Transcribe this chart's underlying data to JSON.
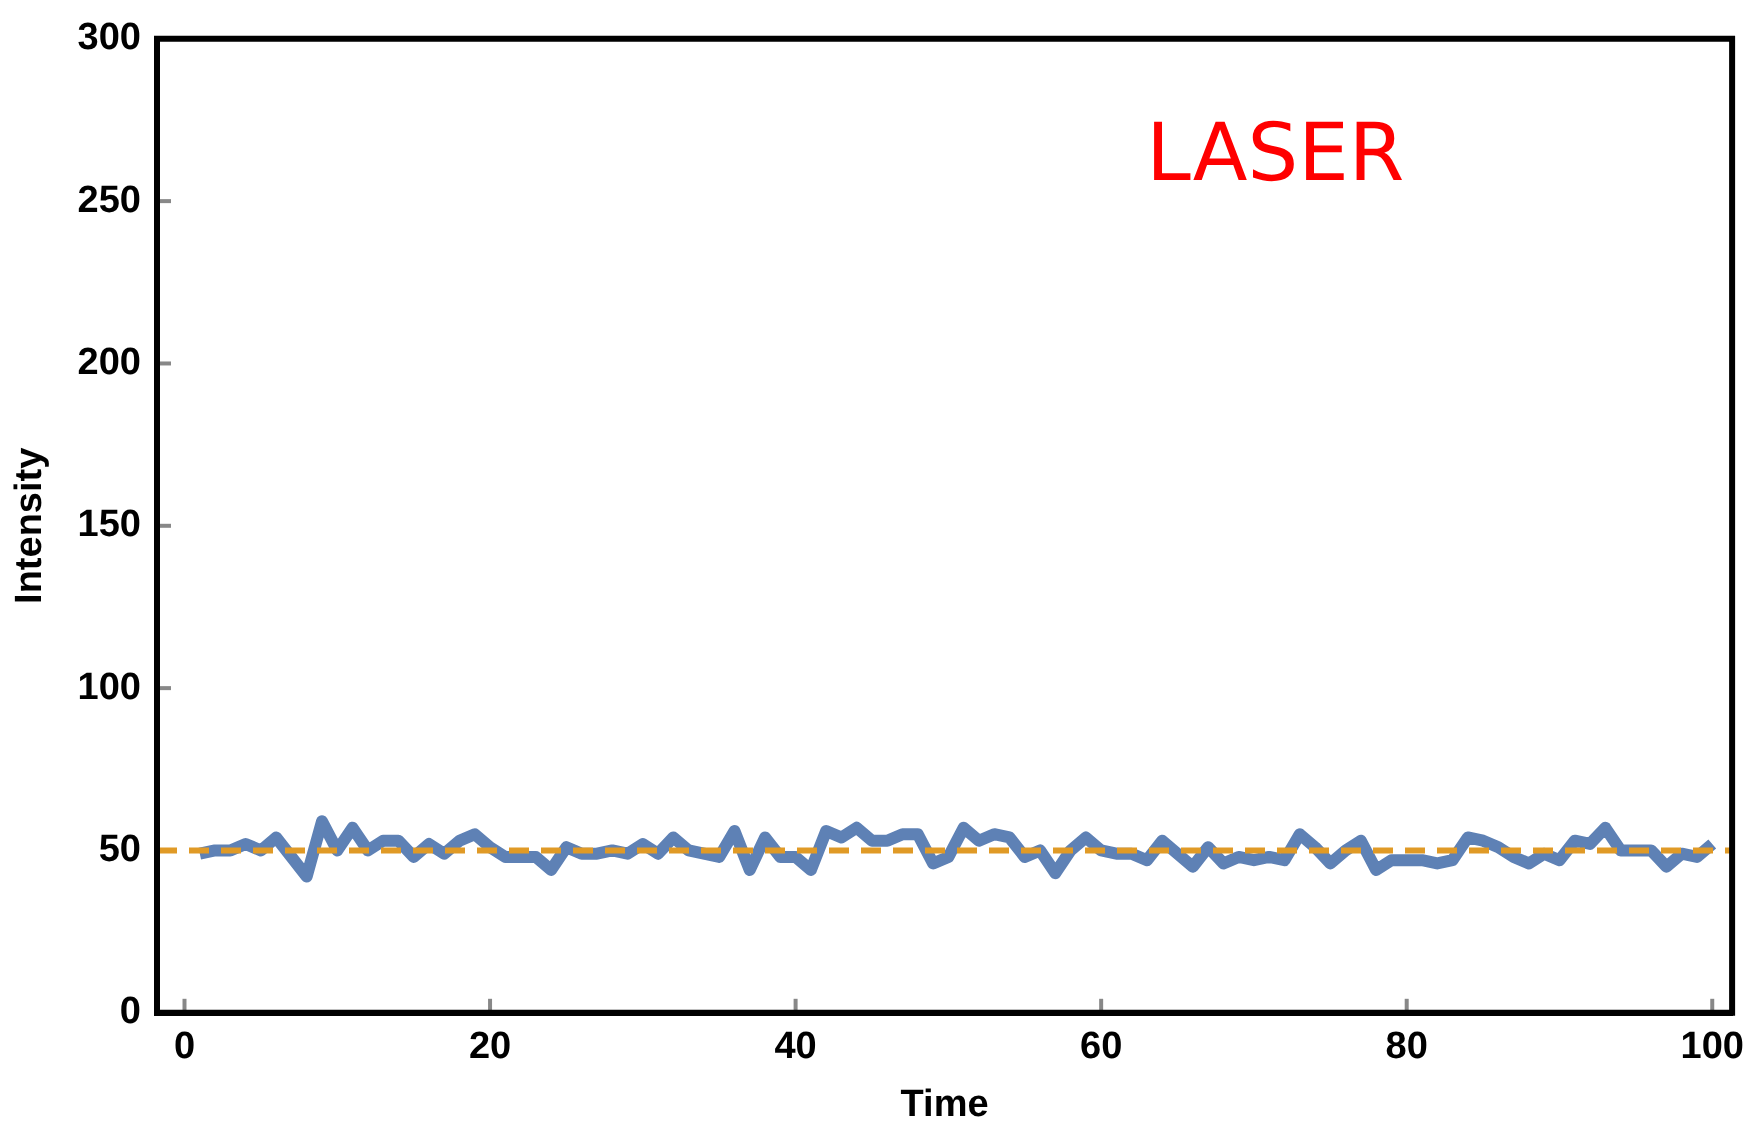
{
  "chart_data": {
    "type": "line",
    "xlabel": "Time",
    "ylabel": "Intensity",
    "annotations": [
      "LASER"
    ],
    "x": [
      1,
      2,
      3,
      4,
      5,
      6,
      7,
      8,
      9,
      10,
      11,
      12,
      13,
      14,
      15,
      16,
      17,
      18,
      19,
      20,
      21,
      22,
      23,
      24,
      25,
      26,
      27,
      28,
      29,
      30,
      31,
      32,
      33,
      34,
      35,
      36,
      37,
      38,
      39,
      40,
      41,
      42,
      43,
      44,
      45,
      46,
      47,
      48,
      49,
      50,
      51,
      52,
      53,
      54,
      55,
      56,
      57,
      58,
      59,
      60,
      61,
      62,
      63,
      64,
      65,
      66,
      67,
      68,
      69,
      70,
      71,
      72,
      73,
      74,
      75,
      76,
      77,
      78,
      79,
      80,
      81,
      82,
      83,
      84,
      85,
      86,
      87,
      88,
      89,
      90,
      91,
      92,
      93,
      94,
      95,
      96,
      97,
      98,
      99,
      100
    ],
    "series": [
      {
        "color": "#5e81b5",
        "values": [
          49,
          50,
          50,
          52,
          50,
          54,
          48,
          42,
          59,
          50,
          57,
          50,
          53,
          53,
          48,
          52,
          49,
          53,
          55,
          51,
          48,
          48,
          48,
          44,
          51,
          49,
          49,
          50,
          49,
          52,
          49,
          54,
          50,
          49,
          48,
          56,
          44,
          54,
          48,
          48,
          44,
          56,
          54,
          57,
          53,
          53,
          55,
          55,
          46,
          48,
          57,
          53,
          55,
          54,
          48,
          50,
          43,
          50,
          54,
          50,
          49,
          49,
          47,
          53,
          49,
          45,
          51,
          46,
          48,
          47,
          48,
          47,
          55,
          51,
          46,
          50,
          53,
          44,
          47,
          47,
          47,
          46,
          47,
          54,
          53,
          51,
          48,
          46,
          49,
          47,
          53,
          52,
          57,
          50,
          50,
          50,
          45,
          49,
          48,
          52
        ]
      }
    ],
    "ref_lines": [
      {
        "axis": "y",
        "value": 50,
        "color": "#e09a26",
        "line_style": "dashed"
      }
    ],
    "xlim": [
      -1.8,
      101.3
    ],
    "ylim": [
      0,
      300
    ],
    "xticks": [
      0,
      20,
      40,
      60,
      80,
      100
    ],
    "yticks": [
      0,
      50,
      100,
      150,
      200,
      250,
      300
    ],
    "grid": false,
    "legend": false,
    "marker": "none",
    "line_style": "solid"
  }
}
